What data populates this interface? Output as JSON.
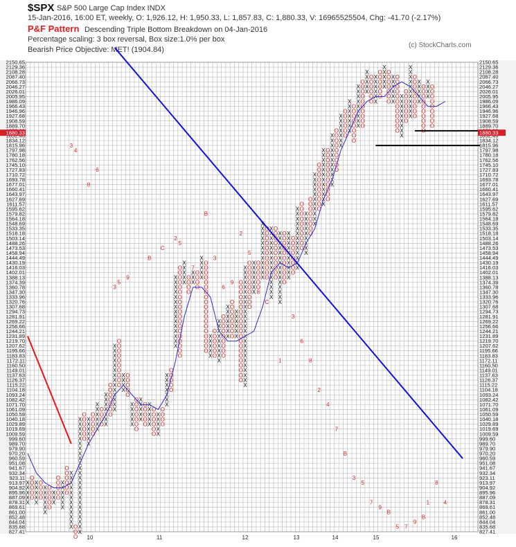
{
  "header": {
    "symbol": "$SPX",
    "name": "S&P 500 Large Cap Index  INDX",
    "quote": "15-Jan-2016, 16:00 ET, weekly, O: 1,926.12, H: 1,950.33, L: 1,857.83, C: 1,880.33, V: 16965525504, Chg: -41.70 (-2.17%)",
    "pf_label": "P&F Pattern",
    "pattern": "Descending Triple Bottom Breakdown on 04-Jan-2016",
    "scaling": "Percentage scaling: 3 box reversal, Box size:1.0% per box",
    "objective": "Bearish Price Objective: MET! (1904.84)",
    "credit": "(c) StockCharts.com"
  },
  "colors": {
    "x_mark": "#111111",
    "o_mark": "#cc2222",
    "month_mark": "#cc2222",
    "grid": "#b8b8b8",
    "moving_average": "#2a2ad0",
    "trendline": "#1010dd",
    "resistance": "#ee1111",
    "support": "#000000",
    "last_price_bg": "#d4202a",
    "label_band": "#f2f2f2"
  },
  "chart_data": {
    "type": "point-and-figure",
    "box_size_pct": 1.0,
    "reversal": 3,
    "yticks": [
      "2150.65",
      "2129.36",
      "2108.28",
      "2087.40",
      "2066.73",
      "2046.27",
      "2026.01",
      "2005.95",
      "1986.09",
      "1966.43",
      "1946.96",
      "1927.68",
      "1908.59",
      "1889.70",
      "1870.99",
      "1852.46",
      "1834.12",
      "1815.96",
      "1797.98",
      "1780.18",
      "1762.56",
      "1745.10",
      "1727.83",
      "1710.72",
      "1693.78",
      "1677.01",
      "1660.41",
      "1643.97",
      "1627.69",
      "1611.57",
      "1595.62",
      "1579.82",
      "1564.18",
      "1548.69",
      "1533.35",
      "1518.18",
      "1503.14",
      "1488.26",
      "1473.53",
      "1458.94",
      "1444.49",
      "1430.19",
      "1416.03",
      "1402.01",
      "1388.13",
      "1374.39",
      "1360.78",
      "1347.30",
      "1333.96",
      "1320.76",
      "1307.68",
      "1294.73",
      "1281.91",
      "1269.22",
      "1256.66",
      "1244.21",
      "1231.89",
      "1219.70",
      "1207.62",
      "1195.66",
      "1183.83",
      "1172.11",
      "1160.50",
      "1149.01",
      "1137.63",
      "1126.37",
      "1115.22",
      "1104.18",
      "1093.24",
      "1082.42",
      "1071.70",
      "1061.09",
      "1050.59",
      "1040.18",
      "1029.89",
      "1019.69",
      "1009.59",
      "999.60",
      "989.70",
      "979.90",
      "970.20",
      "960.59",
      "951.08",
      "941.67",
      "932.34",
      "923.11",
      "913.97",
      "904.92",
      "895.96",
      "887.09",
      "878.31",
      "869.61",
      "861.00",
      "852.48",
      "844.04",
      "835.68",
      "827.41"
    ],
    "year_labels": [
      "10",
      "11",
      "12",
      "13",
      "14",
      "15",
      "16"
    ],
    "last_price": "1880.33",
    "columns": [
      {
        "t": "X",
        "lo": 86,
        "hi": 90
      },
      {
        "t": "O",
        "lo": 85,
        "hi": 89
      },
      {
        "t": "X",
        "lo": 86,
        "hi": 90
      },
      {
        "t": "O",
        "lo": 86,
        "hi": 89
      },
      {
        "t": "X",
        "lo": 87,
        "hi": 92
      },
      {
        "t": "O",
        "lo": 87,
        "hi": 91
      },
      {
        "t": "X",
        "lo": 88,
        "hi": 90
      },
      {
        "t": "O",
        "lo": 85,
        "hi": 89
      },
      {
        "t": "X",
        "lo": 86,
        "hi": 91
      },
      {
        "t": "O",
        "lo": 83,
        "hi": 88
      },
      {
        "t": "X",
        "lo": 84,
        "hi": 95
      },
      {
        "t": "O",
        "lo": 95,
        "hi": 97
      },
      {
        "t": "X",
        "lo": 73,
        "hi": 96
      },
      {
        "t": "O",
        "lo": 72,
        "hi": 77
      },
      {
        "t": "X",
        "lo": 73,
        "hi": 78
      },
      {
        "t": "O",
        "lo": 72,
        "hi": 76
      },
      {
        "t": "X",
        "lo": 70,
        "hi": 75
      },
      {
        "t": "O",
        "lo": 71,
        "hi": 74
      },
      {
        "t": "X",
        "lo": 68,
        "hi": 74
      },
      {
        "t": "O",
        "lo": 66,
        "hi": 72
      },
      {
        "t": "X",
        "lo": 58,
        "hi": 71
      },
      {
        "t": "O",
        "lo": 57,
        "hi": 66
      },
      {
        "t": "X",
        "lo": 64,
        "hi": 67
      },
      {
        "t": "O",
        "lo": 64,
        "hi": 68
      },
      {
        "t": "X",
        "lo": 70,
        "hi": 74
      },
      {
        "t": "O",
        "lo": 69,
        "hi": 75
      },
      {
        "t": "X",
        "lo": 69,
        "hi": 73
      },
      {
        "t": "O",
        "lo": 70,
        "hi": 74
      },
      {
        "t": "X",
        "lo": 70,
        "hi": 74
      },
      {
        "t": "O",
        "lo": 71,
        "hi": 76
      },
      {
        "t": "X",
        "lo": 72,
        "hi": 76
      },
      {
        "t": "O",
        "lo": 71,
        "hi": 74
      },
      {
        "t": "X",
        "lo": 64,
        "hi": 70
      },
      {
        "t": "O",
        "lo": 63,
        "hi": 67
      },
      {
        "t": "X",
        "lo": 44,
        "hi": 58
      },
      {
        "t": "O",
        "lo": 42,
        "hi": 60
      },
      {
        "t": "X",
        "lo": 41,
        "hi": 45
      },
      {
        "t": "O",
        "lo": 44,
        "hi": 47
      },
      {
        "t": "X",
        "lo": 42,
        "hi": 45
      },
      {
        "t": "O",
        "lo": 43,
        "hi": 46
      },
      {
        "t": "X",
        "lo": 40,
        "hi": 44
      },
      {
        "t": "O",
        "lo": 41,
        "hi": 59
      },
      {
        "t": "X",
        "lo": 56,
        "hi": 60
      },
      {
        "t": "O",
        "lo": 55,
        "hi": 60
      },
      {
        "t": "X",
        "lo": 53,
        "hi": 61
      },
      {
        "t": "O",
        "lo": 52,
        "hi": 60
      },
      {
        "t": "X",
        "lo": 50,
        "hi": 56
      },
      {
        "t": "O",
        "lo": 49,
        "hi": 56
      },
      {
        "t": "X",
        "lo": 51,
        "hi": 56
      },
      {
        "t": "O",
        "lo": 45,
        "hi": 65
      },
      {
        "t": "X",
        "lo": 42,
        "hi": 66
      },
      {
        "t": "O",
        "lo": 41,
        "hi": 50
      },
      {
        "t": "X",
        "lo": 41,
        "hi": 47
      },
      {
        "t": "O",
        "lo": 41,
        "hi": 46
      },
      {
        "t": "X",
        "lo": 33,
        "hi": 44
      },
      {
        "t": "O",
        "lo": 34,
        "hi": 44
      },
      {
        "t": "X",
        "lo": 34,
        "hi": 48
      },
      {
        "t": "O",
        "lo": 34,
        "hi": 44
      },
      {
        "t": "X",
        "lo": 35,
        "hi": 49
      },
      {
        "t": "O",
        "lo": 35,
        "hi": 45
      },
      {
        "t": "X",
        "lo": 35,
        "hi": 44
      },
      {
        "t": "O",
        "lo": 36,
        "hi": 43
      },
      {
        "t": "X",
        "lo": 30,
        "hi": 42
      },
      {
        "t": "O",
        "lo": 29,
        "hi": 38
      },
      {
        "t": "X",
        "lo": 31,
        "hi": 39
      },
      {
        "t": "O",
        "lo": 28,
        "hi": 35
      },
      {
        "t": "X",
        "lo": 23,
        "hi": 33
      },
      {
        "t": "O",
        "lo": 21,
        "hi": 30
      },
      {
        "t": "X",
        "lo": 18,
        "hi": 29
      },
      {
        "t": "O",
        "lo": 18,
        "hi": 28
      },
      {
        "t": "X",
        "lo": 15,
        "hi": 25
      },
      {
        "t": "O",
        "lo": 14,
        "hi": 22
      },
      {
        "t": "X",
        "lo": 11,
        "hi": 17
      },
      {
        "t": "O",
        "lo": 10,
        "hi": 15
      },
      {
        "t": "X",
        "lo": 8,
        "hi": 14
      },
      {
        "t": "O",
        "lo": 9,
        "hi": 16
      },
      {
        "t": "X",
        "lo": 5,
        "hi": 13
      },
      {
        "t": "O",
        "lo": 4,
        "hi": 13
      },
      {
        "t": "X",
        "lo": 2,
        "hi": 6
      },
      {
        "t": "O",
        "lo": 3,
        "hi": 8
      },
      {
        "t": "X",
        "lo": 3,
        "hi": 8
      },
      {
        "t": "O",
        "lo": 2,
        "hi": 7
      },
      {
        "t": "X",
        "lo": 1,
        "hi": 5
      },
      {
        "t": "O",
        "lo": 2,
        "hi": 8
      },
      {
        "t": "X",
        "lo": 3,
        "hi": 8
      },
      {
        "t": "O",
        "lo": 3,
        "hi": 14
      },
      {
        "t": "X",
        "lo": 7,
        "hi": 15
      },
      {
        "t": "O",
        "lo": 6,
        "hi": 12
      },
      {
        "t": "X",
        "lo": 1,
        "hi": 11
      },
      {
        "t": "O",
        "lo": 3,
        "hi": 11
      },
      {
        "t": "X",
        "lo": 4,
        "hi": 8
      },
      {
        "t": "O",
        "lo": 5,
        "hi": 14
      },
      {
        "t": "X",
        "lo": 4,
        "hi": 7
      },
      {
        "t": "O",
        "lo": 5,
        "hi": 13
      }
    ],
    "month_marks": [
      {
        "c": 10,
        "r": 17,
        "s": "3"
      },
      {
        "c": 11,
        "r": 18,
        "s": "4"
      },
      {
        "c": 14,
        "r": 25,
        "s": "8"
      },
      {
        "c": 16,
        "r": 22,
        "s": "6"
      },
      {
        "c": 20,
        "r": 46,
        "s": "3"
      },
      {
        "c": 21,
        "r": 45,
        "s": "5"
      },
      {
        "c": 23,
        "r": 44,
        "s": "9"
      },
      {
        "c": 28,
        "r": 40,
        "s": "B"
      },
      {
        "c": 31,
        "r": 38,
        "s": "C"
      },
      {
        "c": 34,
        "r": 36,
        "s": "2"
      },
      {
        "c": 35,
        "r": 37,
        "s": "5"
      },
      {
        "c": 38,
        "r": 42,
        "s": "7"
      },
      {
        "c": 41,
        "r": 31,
        "s": "B"
      },
      {
        "c": 43,
        "r": 40,
        "s": "3"
      },
      {
        "c": 45,
        "r": 46,
        "s": "6"
      },
      {
        "c": 47,
        "r": 45,
        "s": "9"
      },
      {
        "c": 49,
        "r": 35,
        "s": "2"
      },
      {
        "c": 51,
        "r": 39,
        "s": "5"
      },
      {
        "c": 53,
        "r": 47,
        "s": "8"
      },
      {
        "c": 55,
        "r": 49,
        "s": "C"
      },
      {
        "c": 58,
        "r": 61,
        "s": "1"
      },
      {
        "c": 61,
        "r": 52,
        "s": "3"
      },
      {
        "c": 63,
        "r": 57,
        "s": "6"
      },
      {
        "c": 65,
        "r": 61,
        "s": "8"
      },
      {
        "c": 67,
        "r": 67,
        "s": "2"
      },
      {
        "c": 69,
        "r": 70,
        "s": "4"
      },
      {
        "c": 71,
        "r": 75,
        "s": "7"
      },
      {
        "c": 73,
        "r": 80,
        "s": "B"
      },
      {
        "c": 75,
        "r": 85,
        "s": "3"
      },
      {
        "c": 77,
        "r": 86,
        "s": "5"
      },
      {
        "c": 79,
        "r": 90,
        "s": "7"
      },
      {
        "c": 81,
        "r": 91,
        "s": "9"
      },
      {
        "c": 83,
        "r": 92,
        "s": "B"
      },
      {
        "c": 85,
        "r": 95,
        "s": "5"
      },
      {
        "c": 87,
        "r": 95,
        "s": "7"
      },
      {
        "c": 89,
        "r": 94,
        "s": "9"
      },
      {
        "c": 91,
        "r": 93,
        "s": "B"
      },
      {
        "c": 92,
        "r": 90,
        "s": "1"
      },
      {
        "c": 94,
        "r": 86,
        "s": "8"
      },
      {
        "c": 96,
        "r": 90,
        "s": "4"
      }
    ],
    "moving_average": [
      [
        0,
        80
      ],
      [
        2,
        84
      ],
      [
        4,
        86
      ],
      [
        6,
        87
      ],
      [
        8,
        87
      ],
      [
        10,
        86
      ],
      [
        12,
        82
      ],
      [
        14,
        78
      ],
      [
        16,
        75
      ],
      [
        18,
        72
      ],
      [
        20,
        68
      ],
      [
        22,
        66
      ],
      [
        24,
        68
      ],
      [
        26,
        70
      ],
      [
        28,
        70
      ],
      [
        30,
        71
      ],
      [
        32,
        68
      ],
      [
        34,
        61
      ],
      [
        36,
        52
      ],
      [
        38,
        46
      ],
      [
        40,
        46
      ],
      [
        42,
        48
      ],
      [
        44,
        55
      ],
      [
        46,
        57
      ],
      [
        48,
        57
      ],
      [
        50,
        56
      ],
      [
        52,
        55
      ],
      [
        54,
        50
      ],
      [
        56,
        43
      ],
      [
        58,
        41
      ],
      [
        60,
        42
      ],
      [
        62,
        41
      ],
      [
        64,
        37
      ],
      [
        66,
        34
      ],
      [
        68,
        28
      ],
      [
        70,
        24
      ],
      [
        72,
        18
      ],
      [
        74,
        14
      ],
      [
        76,
        10
      ],
      [
        78,
        8
      ],
      [
        80,
        7
      ],
      [
        82,
        7
      ],
      [
        84,
        5
      ],
      [
        86,
        4
      ],
      [
        88,
        5
      ],
      [
        90,
        7
      ],
      [
        92,
        9
      ],
      [
        94,
        9
      ],
      [
        96,
        8
      ]
    ],
    "trendline": [
      [
        20,
        -3
      ],
      [
        100,
        81
      ]
    ],
    "resistance_line": [
      [
        0,
        56
      ],
      [
        10,
        78
      ]
    ],
    "support_lines": [
      [
        [
          89,
          14
        ],
        [
          104,
          14
        ]
      ],
      [
        [
          80,
          17
        ],
        [
          104,
          17
        ]
      ]
    ]
  }
}
